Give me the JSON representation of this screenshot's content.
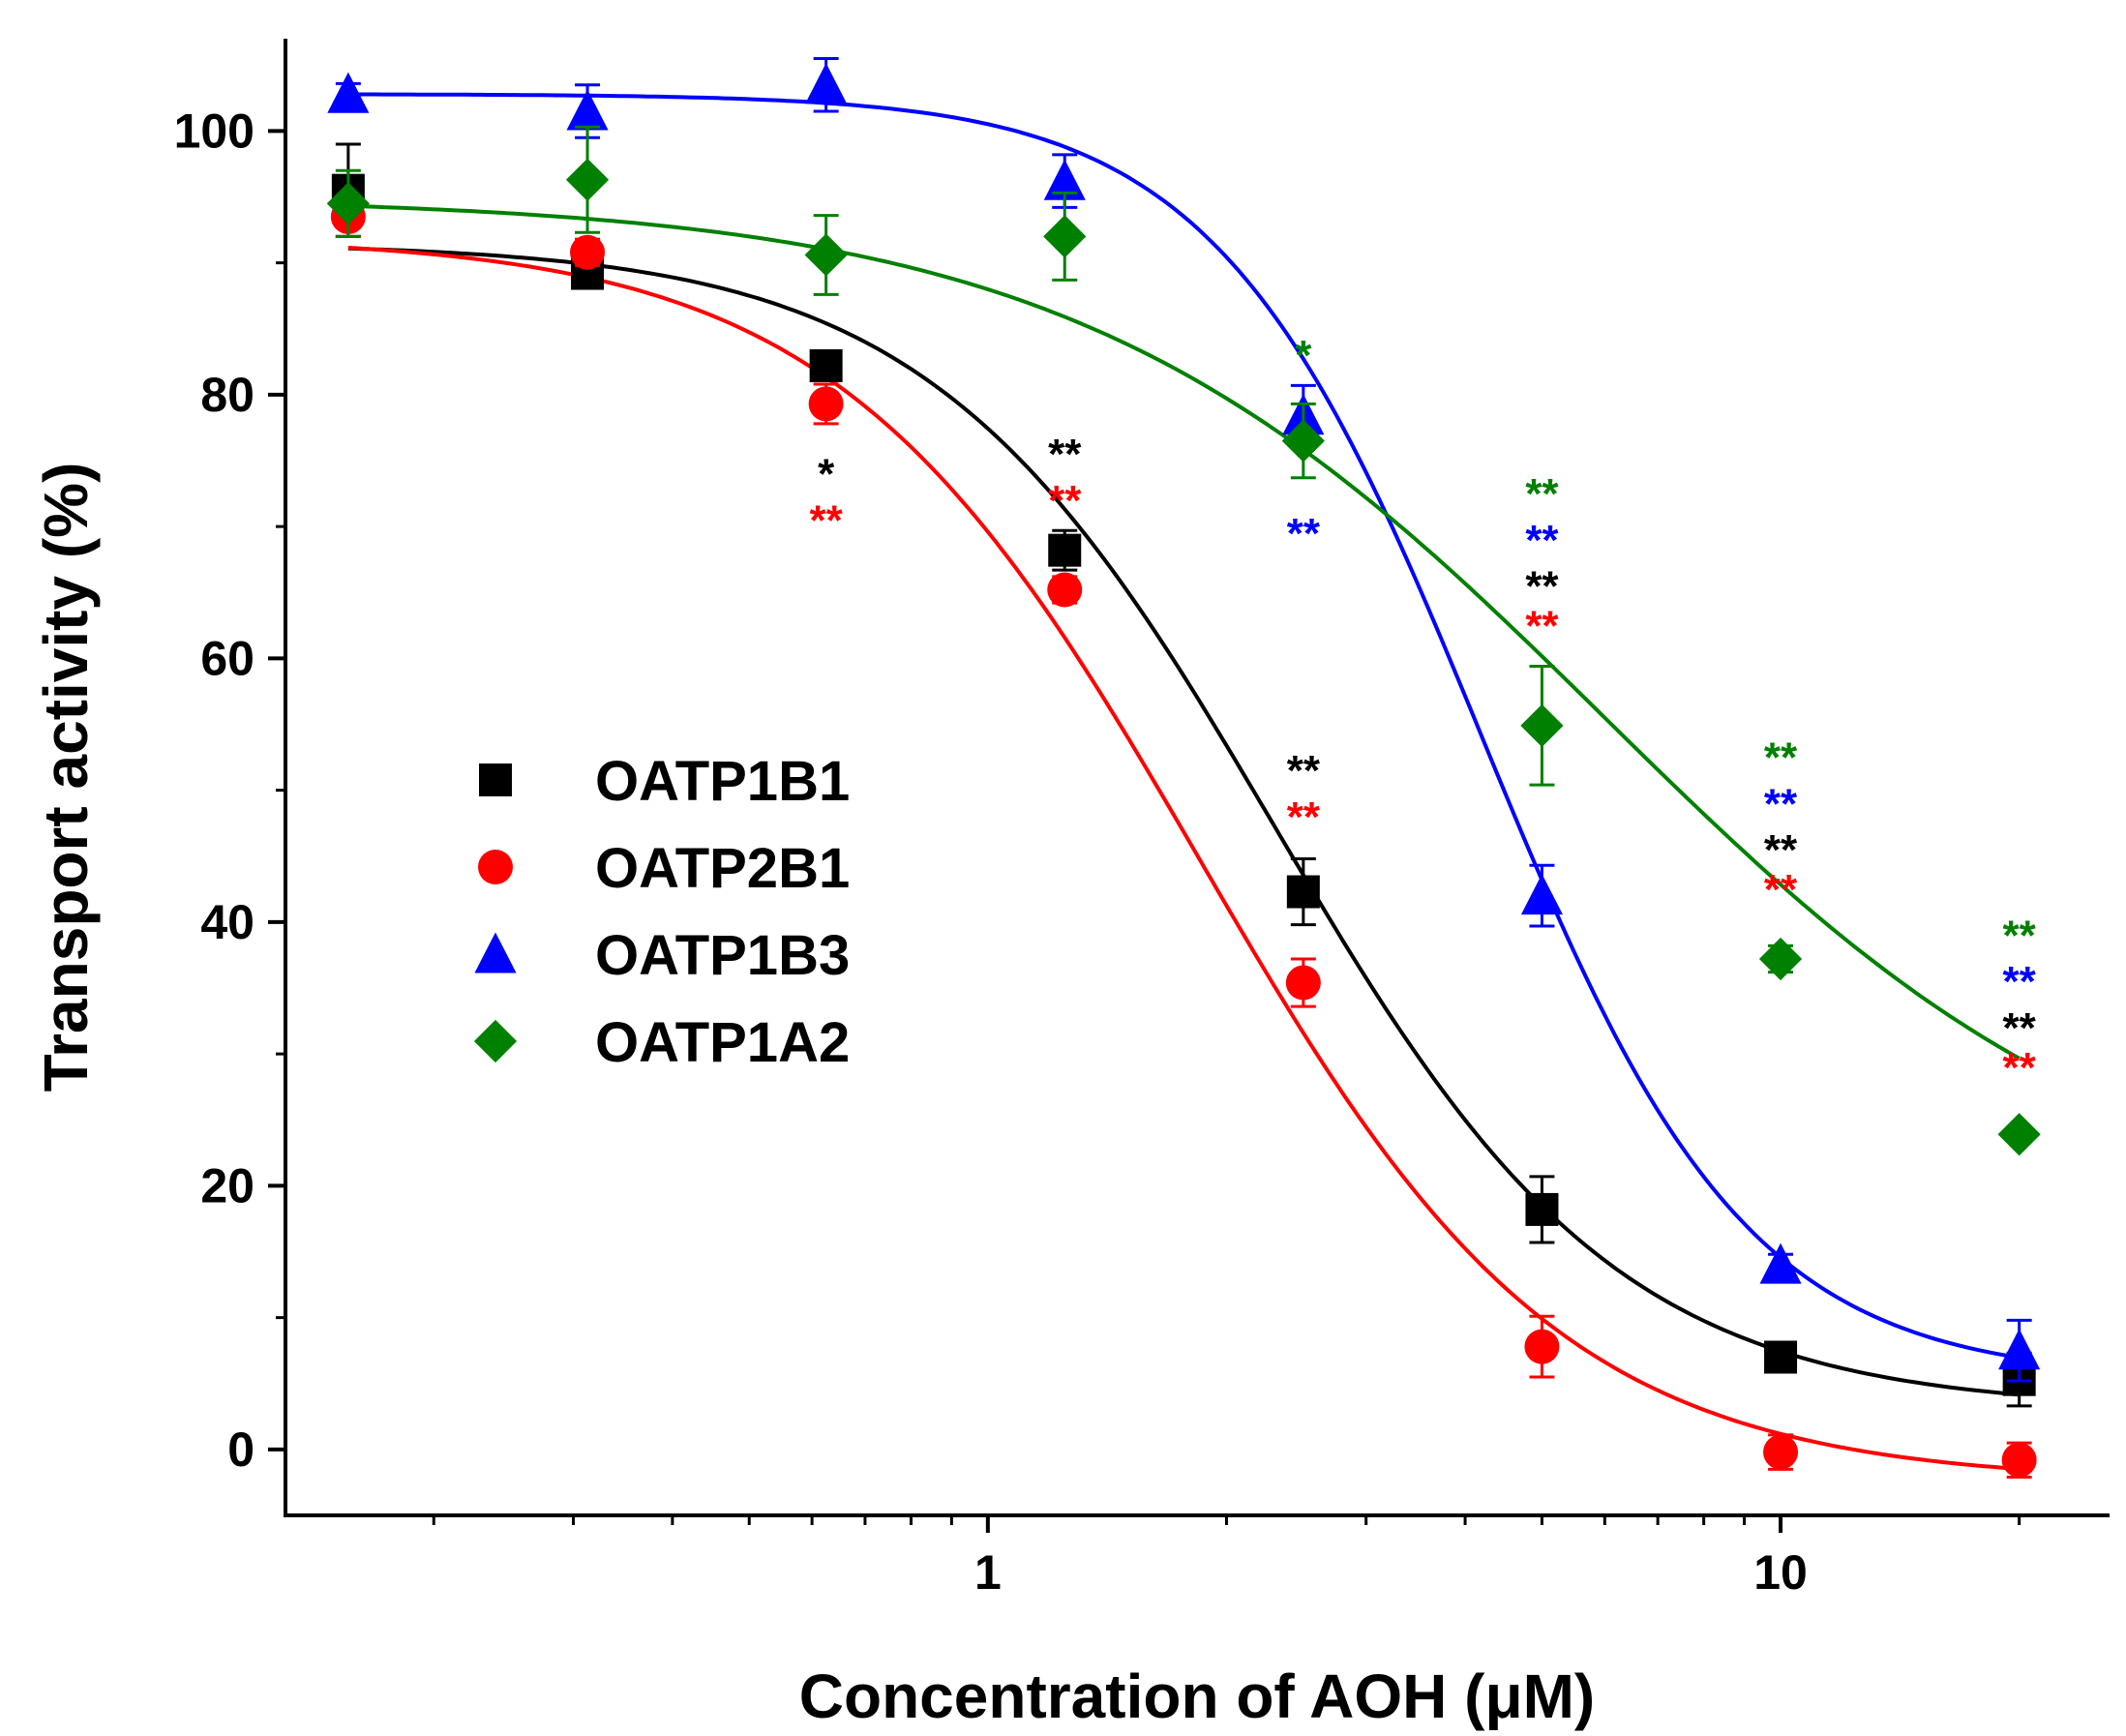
{
  "chart_data": {
    "type": "scatter",
    "x_scale": "log",
    "xlabel": "Concentration of AOH (μM)",
    "ylabel": "Transport activity (%)",
    "xlim": [
      0.13,
      26
    ],
    "ylim": [
      -5,
      107
    ],
    "x_ticks": [
      {
        "value": 1,
        "label": "1"
      },
      {
        "value": 10,
        "label": "10"
      }
    ],
    "y_ticks": [
      {
        "value": 0,
        "label": "0"
      },
      {
        "value": 20,
        "label": "20"
      },
      {
        "value": 40,
        "label": "40"
      },
      {
        "value": 60,
        "label": "60"
      },
      {
        "value": 80,
        "label": "80"
      },
      {
        "value": 100,
        "label": "100"
      }
    ],
    "x": [
      0.156,
      0.3125,
      0.625,
      1.25,
      2.5,
      5,
      10,
      20
    ],
    "legend_position": "center-left",
    "series": [
      {
        "name": "OATP1B1",
        "color": "#000000",
        "marker": "square",
        "values": [
          95.5,
          89.2,
          82.2,
          68.2,
          42.3,
          18.2,
          7.0,
          5.3
        ],
        "errors": [
          3.5,
          1.0,
          1.0,
          1.5,
          2.5,
          2.5,
          0.8,
          2.0
        ],
        "fit": {
          "top": 91.5,
          "bottom": 3.0,
          "ic50": 2.3,
          "hill": 2.0
        }
      },
      {
        "name": "OATP2B1",
        "color": "#ff0000",
        "marker": "circle",
        "values": [
          93.5,
          90.8,
          79.3,
          65.2,
          35.4,
          7.8,
          -0.2,
          -0.8
        ],
        "errors": [
          1.5,
          1.0,
          1.5,
          1.0,
          1.8,
          2.3,
          1.3,
          1.3
        ],
        "fit": {
          "top": 92.0,
          "bottom": -2.5,
          "ic50": 1.85,
          "hill": 1.9
        }
      },
      {
        "name": "OATP1B3",
        "color": "#0000ff",
        "marker": "triangle",
        "values": [
          102.8,
          101.5,
          103.5,
          96.2,
          78.4,
          42.0,
          14.0,
          7.5
        ],
        "errors": [
          0.8,
          2.0,
          2.0,
          2.0,
          2.3,
          2.3,
          0.8,
          2.3
        ],
        "fit": {
          "top": 102.8,
          "bottom": 5.3,
          "ic50": 4.2,
          "hill": 2.6
        }
      },
      {
        "name": "OATP1A2",
        "color": "#008000",
        "marker": "diamond",
        "values": [
          94.5,
          96.3,
          90.6,
          92.0,
          76.5,
          54.9,
          37.2,
          23.9
        ],
        "errors": [
          2.5,
          4.0,
          3.0,
          3.3,
          2.8,
          4.5,
          1.0,
          0.5
        ],
        "fit": {
          "top": 95.0,
          "bottom": 16.0,
          "ic50": 6.0,
          "hill": 1.3
        }
      }
    ],
    "annotations": [
      {
        "x": 0.625,
        "y": 74,
        "text": "*",
        "color": "#000000"
      },
      {
        "x": 0.625,
        "y": 70.5,
        "text": "**",
        "color": "#ff0000"
      },
      {
        "x": 1.25,
        "y": 75.5,
        "text": "**",
        "color": "#000000"
      },
      {
        "x": 1.25,
        "y": 72,
        "text": "**",
        "color": "#ff0000"
      },
      {
        "x": 2.5,
        "y": 83,
        "text": "*",
        "color": "#008000"
      },
      {
        "x": 2.5,
        "y": 69.5,
        "text": "**",
        "color": "#0000ff"
      },
      {
        "x": 2.5,
        "y": 51.5,
        "text": "**",
        "color": "#000000"
      },
      {
        "x": 2.5,
        "y": 48,
        "text": "**",
        "color": "#ff0000"
      },
      {
        "x": 5,
        "y": 72.5,
        "text": "**",
        "color": "#008000"
      },
      {
        "x": 5,
        "y": 69,
        "text": "**",
        "color": "#0000ff"
      },
      {
        "x": 5,
        "y": 65.5,
        "text": "**",
        "color": "#000000"
      },
      {
        "x": 5,
        "y": 62.5,
        "text": "**",
        "color": "#ff0000"
      },
      {
        "x": 10,
        "y": 52.5,
        "text": "**",
        "color": "#008000"
      },
      {
        "x": 10,
        "y": 49,
        "text": "**",
        "color": "#0000ff"
      },
      {
        "x": 10,
        "y": 45.5,
        "text": "**",
        "color": "#000000"
      },
      {
        "x": 10,
        "y": 42.5,
        "text": "**",
        "color": "#ff0000"
      },
      {
        "x": 20,
        "y": 39,
        "text": "**",
        "color": "#008000"
      },
      {
        "x": 20,
        "y": 35.5,
        "text": "**",
        "color": "#0000ff"
      },
      {
        "x": 20,
        "y": 32,
        "text": "**",
        "color": "#000000"
      },
      {
        "x": 20,
        "y": 29,
        "text": "**",
        "color": "#ff0000"
      }
    ]
  }
}
